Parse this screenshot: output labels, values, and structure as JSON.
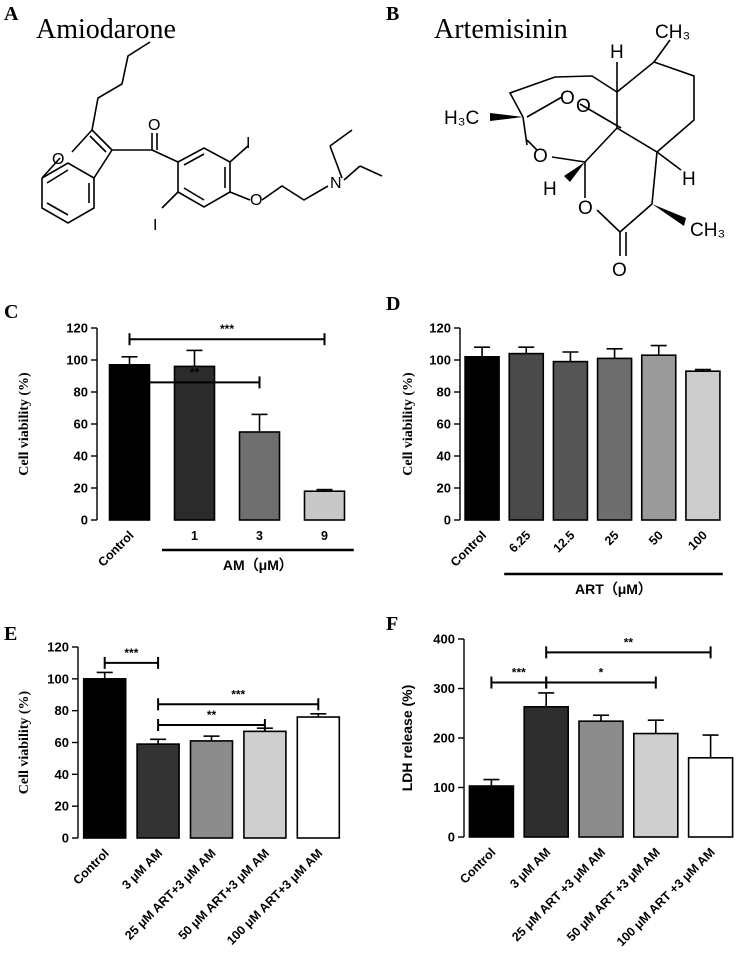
{
  "panels": {
    "A": {
      "letter": "A",
      "compound": "Amiodarone",
      "atoms": {
        "O_carbonyl": "O",
        "O_furan": "O",
        "O_ether": "O",
        "N": "N",
        "I_top": "I",
        "I_bottom": "I"
      }
    },
    "B": {
      "letter": "B",
      "compound": "Artemisinin",
      "atoms": {
        "H_top": "H",
        "CH3_top": "CH₃",
        "H3C": "H₃C",
        "O_a": "O",
        "O_b": "O",
        "O_ring": "O",
        "H_left": "H",
        "H_right": "H",
        "O_lactone": "O",
        "CH3_bottom": "CH₃",
        "O_keto": "O"
      }
    },
    "C": {
      "letter": "C"
    },
    "D": {
      "letter": "D"
    },
    "E": {
      "letter": "E"
    },
    "F": {
      "letter": "F"
    }
  },
  "chart_data": [
    {
      "panel": "C",
      "type": "bar",
      "categories": [
        "Control",
        "1",
        "3",
        "9"
      ],
      "values": [
        97,
        96,
        55,
        18
      ],
      "errors": [
        5,
        10,
        11,
        1
      ],
      "fills": [
        "#000000",
        "#2b2b2b",
        "#6f6f6f",
        "#c8c8c8"
      ],
      "ylabel": "Cell viability (%)",
      "yticks": [
        0,
        20,
        40,
        60,
        80,
        100,
        120
      ],
      "ylim": [
        0,
        120
      ],
      "group_label": "AM（μM）",
      "group_span": [
        1,
        3
      ],
      "cat_rotated": [
        true,
        false,
        false,
        false
      ],
      "significance": [
        {
          "from": 0,
          "to": 3,
          "y": 113,
          "label": "***"
        },
        {
          "from": 0,
          "to": 2,
          "y": 86,
          "label": "**"
        }
      ]
    },
    {
      "panel": "D",
      "type": "bar",
      "categories": [
        "Control",
        "6.25",
        "12.5",
        "25",
        "50",
        "100"
      ],
      "values": [
        102,
        104,
        99,
        101,
        103,
        93
      ],
      "errors": [
        6,
        4,
        6,
        6,
        6,
        1
      ],
      "fills": [
        "#000000",
        "#4a4a4a",
        "#555555",
        "#6e6e6e",
        "#9a9a9a",
        "#cccccc"
      ],
      "ylabel": "Cell viability (%)",
      "yticks": [
        0,
        20,
        40,
        60,
        80,
        100,
        120
      ],
      "ylim": [
        0,
        120
      ],
      "group_label": "ART（μM）",
      "group_span": [
        1,
        5
      ],
      "cat_rotated": [
        true,
        true,
        true,
        true,
        true,
        true
      ],
      "significance": []
    },
    {
      "panel": "E",
      "type": "bar",
      "categories": [
        "Control",
        "3 μM AM",
        "25 μM ART+3 μM AM",
        "50 μM ART+3 μM AM",
        "100 μM ART+3 μM AM"
      ],
      "values": [
        100,
        59,
        61,
        67,
        76
      ],
      "errors": [
        4,
        3,
        3,
        2,
        2
      ],
      "fills": [
        "#000000",
        "#333333",
        "#8c8c8c",
        "#cfcfcf",
        "#ffffff"
      ],
      "ylabel": "Cell viability (%)",
      "yticks": [
        0,
        20,
        40,
        60,
        80,
        100,
        120
      ],
      "ylim": [
        0,
        120
      ],
      "cat_rotated": [
        true,
        true,
        true,
        true,
        true
      ],
      "significance": [
        {
          "from": 0,
          "to": 1,
          "y": 110,
          "label": "***"
        },
        {
          "from": 1,
          "to": 4,
          "y": 84,
          "label": "***"
        },
        {
          "from": 1,
          "to": 3,
          "y": 71,
          "label": "**"
        }
      ]
    },
    {
      "panel": "F",
      "type": "bar",
      "categories": [
        "Control",
        "3 μM AM",
        "25 μM ART +3 μM AM",
        "50 μM ART +3 μM AM",
        "100 μM ART +3 μM AM"
      ],
      "values": [
        103,
        263,
        234,
        209,
        160
      ],
      "errors": [
        13,
        28,
        12,
        27,
        46
      ],
      "fills": [
        "#000000",
        "#2e2e2e",
        "#8c8c8c",
        "#cfcfcf",
        "#ffffff"
      ],
      "ylabel": "LDH release (%)",
      "yticks": [
        0,
        100,
        200,
        300,
        400
      ],
      "ylim": [
        0,
        400
      ],
      "cat_rotated": [
        true,
        true,
        true,
        true,
        true
      ],
      "significance": [
        {
          "from": 0,
          "to": 1,
          "y": 312,
          "label": "***"
        },
        {
          "from": 1,
          "to": 4,
          "y": 373,
          "label": "**"
        },
        {
          "from": 1,
          "to": 3,
          "y": 312,
          "label": "*"
        }
      ]
    }
  ]
}
